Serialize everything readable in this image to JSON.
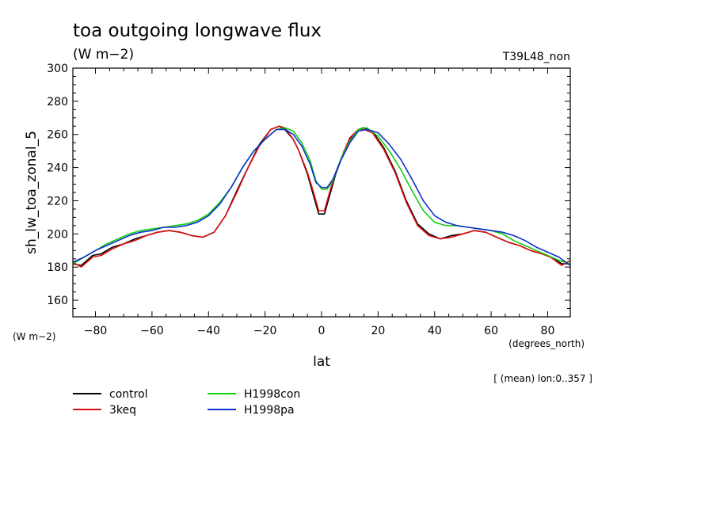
{
  "chart_data": {
    "type": "line",
    "title": "toa outgoing longwave flux",
    "units": "(W m−2)",
    "run_label": "T39L48_non",
    "ylabel": "sh_lw_toa_zonal_5",
    "y_units": "(W m−2)",
    "xlabel": "lat",
    "x_units": "(degrees_north)",
    "footnote": "[ (mean) lon:0..357 ]",
    "xlim": [
      -88,
      88
    ],
    "ylim": [
      150,
      300
    ],
    "x_ticks": [
      -80,
      -60,
      -40,
      -20,
      0,
      20,
      40,
      60,
      80
    ],
    "y_ticks": [
      160,
      180,
      200,
      220,
      240,
      260,
      280,
      300
    ],
    "x_tick_labels": [
      "−80",
      "−60",
      "−40",
      "−20",
      "0",
      "20",
      "40",
      "60",
      "80"
    ],
    "y_tick_labels": [
      "160",
      "180",
      "200",
      "220",
      "240",
      "260",
      "280",
      "300"
    ],
    "series": [
      {
        "name": "control",
        "color": "#000000",
        "x": [
          -88,
          -85,
          -81,
          -78,
          -74,
          -70,
          -66,
          -62,
          -58,
          -54,
          -50,
          -46,
          -42,
          -38,
          -34,
          -30,
          -26,
          -22,
          -18,
          -15,
          -13,
          -10,
          -8,
          -5,
          -3,
          -1,
          1,
          3,
          5,
          8,
          10,
          13,
          15,
          18,
          22,
          26,
          30,
          34,
          38,
          42,
          46,
          50,
          54,
          58,
          62,
          66,
          70,
          74,
          78,
          81,
          85,
          88
        ],
        "y": [
          182,
          181,
          187,
          188,
          192,
          194,
          197,
          199,
          201,
          202,
          201,
          199,
          198,
          201,
          211,
          226,
          240,
          254,
          263,
          265,
          263,
          257,
          250,
          236,
          224,
          212,
          212,
          224,
          236,
          250,
          257,
          263,
          264,
          262,
          252,
          238,
          220,
          206,
          200,
          197,
          199,
          200,
          202,
          201,
          198,
          195,
          193,
          190,
          188,
          186,
          182,
          182
        ]
      },
      {
        "name": "3keq",
        "color": "#e01010",
        "x": [
          -88,
          -85,
          -81,
          -78,
          -74,
          -70,
          -66,
          -62,
          -58,
          -54,
          -50,
          -46,
          -42,
          -38,
          -34,
          -30,
          -26,
          -22,
          -18,
          -15,
          -13,
          -10,
          -8,
          -5,
          -3,
          -1,
          1,
          3,
          5,
          8,
          10,
          13,
          15,
          18,
          22,
          26,
          30,
          34,
          38,
          42,
          46,
          50,
          54,
          58,
          62,
          66,
          70,
          74,
          78,
          81,
          85,
          88
        ],
        "y": [
          183,
          180,
          186,
          187,
          191,
          194,
          196,
          199,
          201,
          202,
          201,
          199,
          198,
          201,
          211,
          225,
          240,
          253,
          263,
          265,
          264,
          257,
          250,
          237,
          226,
          214,
          214,
          226,
          237,
          250,
          258,
          263,
          263,
          261,
          251,
          237,
          219,
          205,
          199,
          197,
          198,
          200,
          202,
          201,
          198,
          195,
          193,
          190,
          188,
          186,
          181,
          184
        ]
      },
      {
        "name": "H1998con",
        "color": "#10d010",
        "x": [
          -88,
          -84,
          -80,
          -76,
          -72,
          -68,
          -64,
          -60,
          -56,
          -52,
          -48,
          -44,
          -40,
          -36,
          -32,
          -28,
          -24,
          -20,
          -16,
          -13,
          -10,
          -7,
          -4,
          -2,
          0,
          2,
          4,
          7,
          10,
          13,
          16,
          20,
          24,
          28,
          32,
          36,
          40,
          44,
          48,
          52,
          56,
          60,
          64,
          68,
          72,
          76,
          80,
          84,
          88
        ],
        "y": [
          182,
          186,
          190,
          194,
          197,
          200,
          202,
          203,
          204,
          205,
          206,
          208,
          212,
          219,
          228,
          240,
          250,
          257,
          263,
          264,
          262,
          255,
          244,
          232,
          227,
          227,
          232,
          246,
          256,
          263,
          264,
          259,
          250,
          239,
          226,
          214,
          207,
          205,
          205,
          204,
          203,
          202,
          200,
          196,
          193,
          190,
          187,
          184,
          182
        ]
      },
      {
        "name": "H1998pa",
        "color": "#1030d0",
        "x": [
          -88,
          -84,
          -80,
          -76,
          -72,
          -68,
          -64,
          -60,
          -56,
          -52,
          -48,
          -44,
          -40,
          -36,
          -32,
          -28,
          -24,
          -20,
          -16,
          -13,
          -10,
          -7,
          -4,
          -2,
          0,
          2,
          4,
          7,
          10,
          13,
          16,
          20,
          24,
          28,
          32,
          36,
          40,
          44,
          48,
          52,
          56,
          60,
          64,
          68,
          72,
          76,
          80,
          84,
          88
        ],
        "y": [
          183,
          186,
          190,
          193,
          196,
          199,
          201,
          202,
          204,
          204,
          205,
          207,
          211,
          218,
          228,
          240,
          250,
          257,
          263,
          263,
          260,
          253,
          242,
          231,
          228,
          228,
          233,
          245,
          255,
          262,
          263,
          261,
          254,
          245,
          233,
          220,
          211,
          207,
          205,
          204,
          203,
          202,
          201,
          199,
          196,
          192,
          189,
          186,
          181
        ]
      }
    ]
  }
}
